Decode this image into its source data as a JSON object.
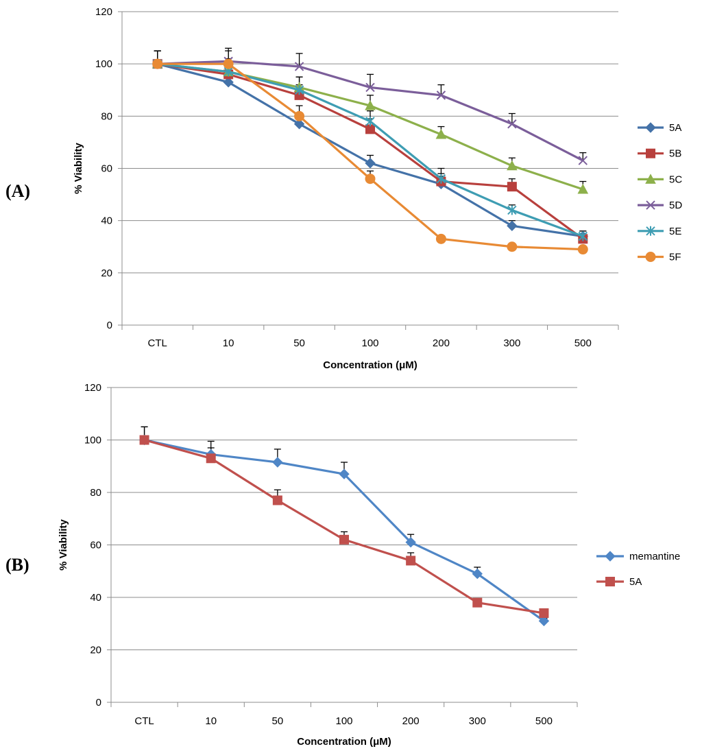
{
  "panels": [
    {
      "label": "(A)",
      "chart_data": {
        "type": "line",
        "title": "",
        "xlabel": "Concentration (μM)",
        "ylabel": "% Viability",
        "categories": [
          "CTL",
          "10",
          "50",
          "100",
          "200",
          "300",
          "500"
        ],
        "ylim": [
          0,
          120
        ],
        "yticks": [
          0,
          20,
          40,
          60,
          80,
          100,
          120
        ],
        "grid": true,
        "legend_position": "right",
        "series": [
          {
            "name": "5A",
            "color": "#4472A8",
            "marker": "diamond",
            "values": [
              100,
              93,
              77,
              62,
              54,
              38,
              34
            ],
            "errors": [
              5,
              4,
              4,
              3,
              3,
              2,
              2
            ]
          },
          {
            "name": "5B",
            "color": "#B8403D",
            "marker": "square",
            "values": [
              100,
              96,
              88,
              75,
              55,
              53,
              33
            ],
            "errors": [
              5,
              4,
              4,
              4,
              3,
              3,
              2
            ]
          },
          {
            "name": "5C",
            "color": "#8DB04B",
            "marker": "triangle",
            "values": [
              100,
              97,
              91,
              84,
              73,
              61,
              52
            ],
            "errors": [
              5,
              4,
              4,
              4,
              3,
              3,
              3
            ]
          },
          {
            "name": "5D",
            "color": "#7B5E9A",
            "marker": "x",
            "values": [
              100,
              101,
              99,
              91,
              88,
              77,
              63
            ],
            "errors": [
              5,
              5,
              5,
              5,
              4,
              4,
              3
            ]
          },
          {
            "name": "5E",
            "color": "#3E9DB3",
            "marker": "star",
            "values": [
              100,
              97,
              90,
              78,
              56,
              44,
              34
            ],
            "errors": [
              5,
              5,
              5,
              4,
              4,
              2,
              2
            ]
          },
          {
            "name": "5F",
            "color": "#E88A34",
            "marker": "circle",
            "values": [
              100,
              100,
              80,
              56,
              33,
              30,
              29
            ],
            "errors": [
              5,
              5,
              4,
              3,
              1,
              1,
              1
            ]
          }
        ]
      }
    },
    {
      "label": "(B)",
      "chart_data": {
        "type": "line",
        "title": "",
        "xlabel": "Concentration (μM)",
        "ylabel": "% Viability",
        "categories": [
          "CTL",
          "10",
          "50",
          "100",
          "200",
          "300",
          "500"
        ],
        "ylim": [
          0,
          120
        ],
        "yticks": [
          0,
          20,
          40,
          60,
          80,
          100,
          120
        ],
        "grid": true,
        "legend_position": "right",
        "series": [
          {
            "name": "memantine",
            "color": "#4F86C6",
            "marker": "diamond",
            "values": [
              100,
              94.5,
              91.5,
              87,
              61,
              49,
              31
            ],
            "errors": [
              5,
              5,
              5,
              4.5,
              3,
              2.5,
              1
            ]
          },
          {
            "name": "5A",
            "color": "#C0504D",
            "marker": "square",
            "values": [
              100,
              93,
              77,
              62,
              54,
              38,
              34
            ],
            "errors": [
              5,
              4,
              4,
              3,
              3,
              1,
              1
            ]
          }
        ]
      }
    }
  ]
}
